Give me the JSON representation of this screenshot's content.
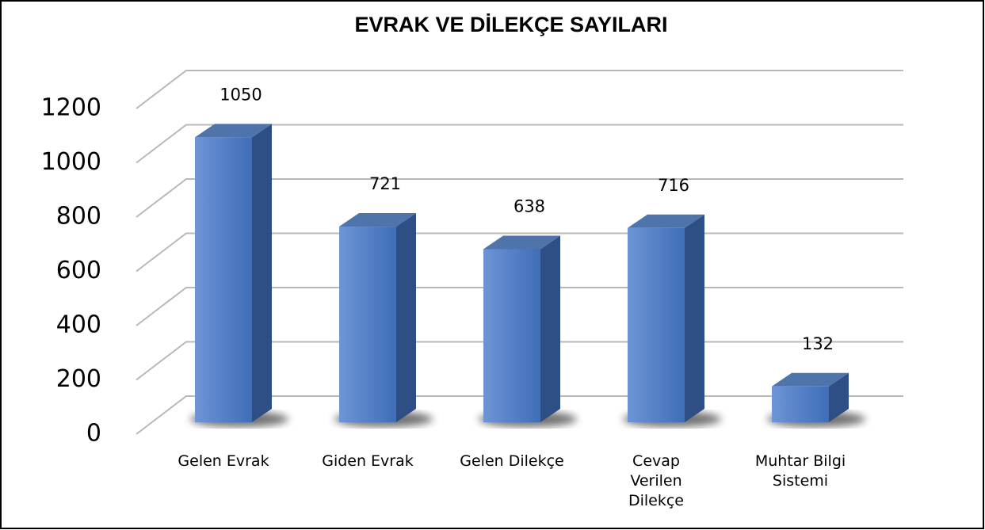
{
  "chart_data": {
    "type": "bar3d",
    "title": "EVRAK VE DİLEKÇE SAYILARI",
    "categories": [
      "Gelen Evrak",
      "Giden Evrak",
      "Gelen Dilekçe",
      "Cevap Verilen Dilekçe",
      "Muhtar Bilgi Sistemi"
    ],
    "values": [
      1050,
      721,
      638,
      716,
      132
    ],
    "color": "#4a7cc8",
    "ylim": [
      0,
      1200
    ],
    "yticks": [
      0,
      200,
      400,
      600,
      800,
      1000,
      1200
    ],
    "grid": true
  }
}
